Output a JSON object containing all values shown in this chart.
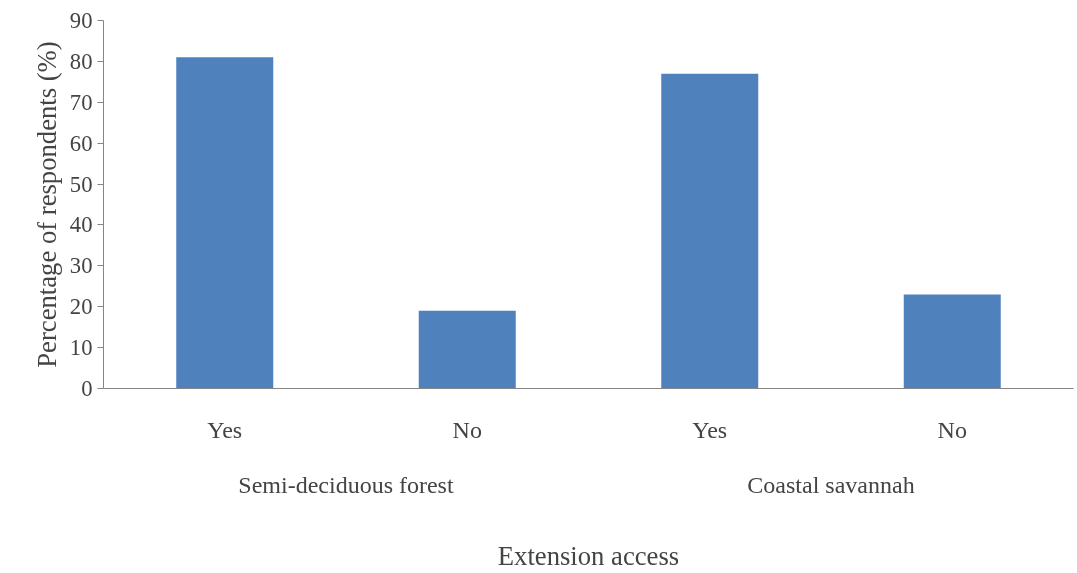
{
  "chart_data": {
    "type": "bar",
    "categories": [
      "Yes",
      "No",
      "Yes",
      "No"
    ],
    "values": [
      81,
      19,
      77,
      23
    ],
    "color": "#4f81bd",
    "ylabel": "Percentage of respondents (%)",
    "xlabel": "Extension access",
    "annotations": [
      "Semi-deciduous forest",
      "Coastal savannah"
    ],
    "ylim": [
      0,
      90
    ],
    "yticks": [
      0,
      10,
      20,
      30,
      40,
      50,
      60,
      70,
      80,
      90
    ],
    "grid": false
  }
}
